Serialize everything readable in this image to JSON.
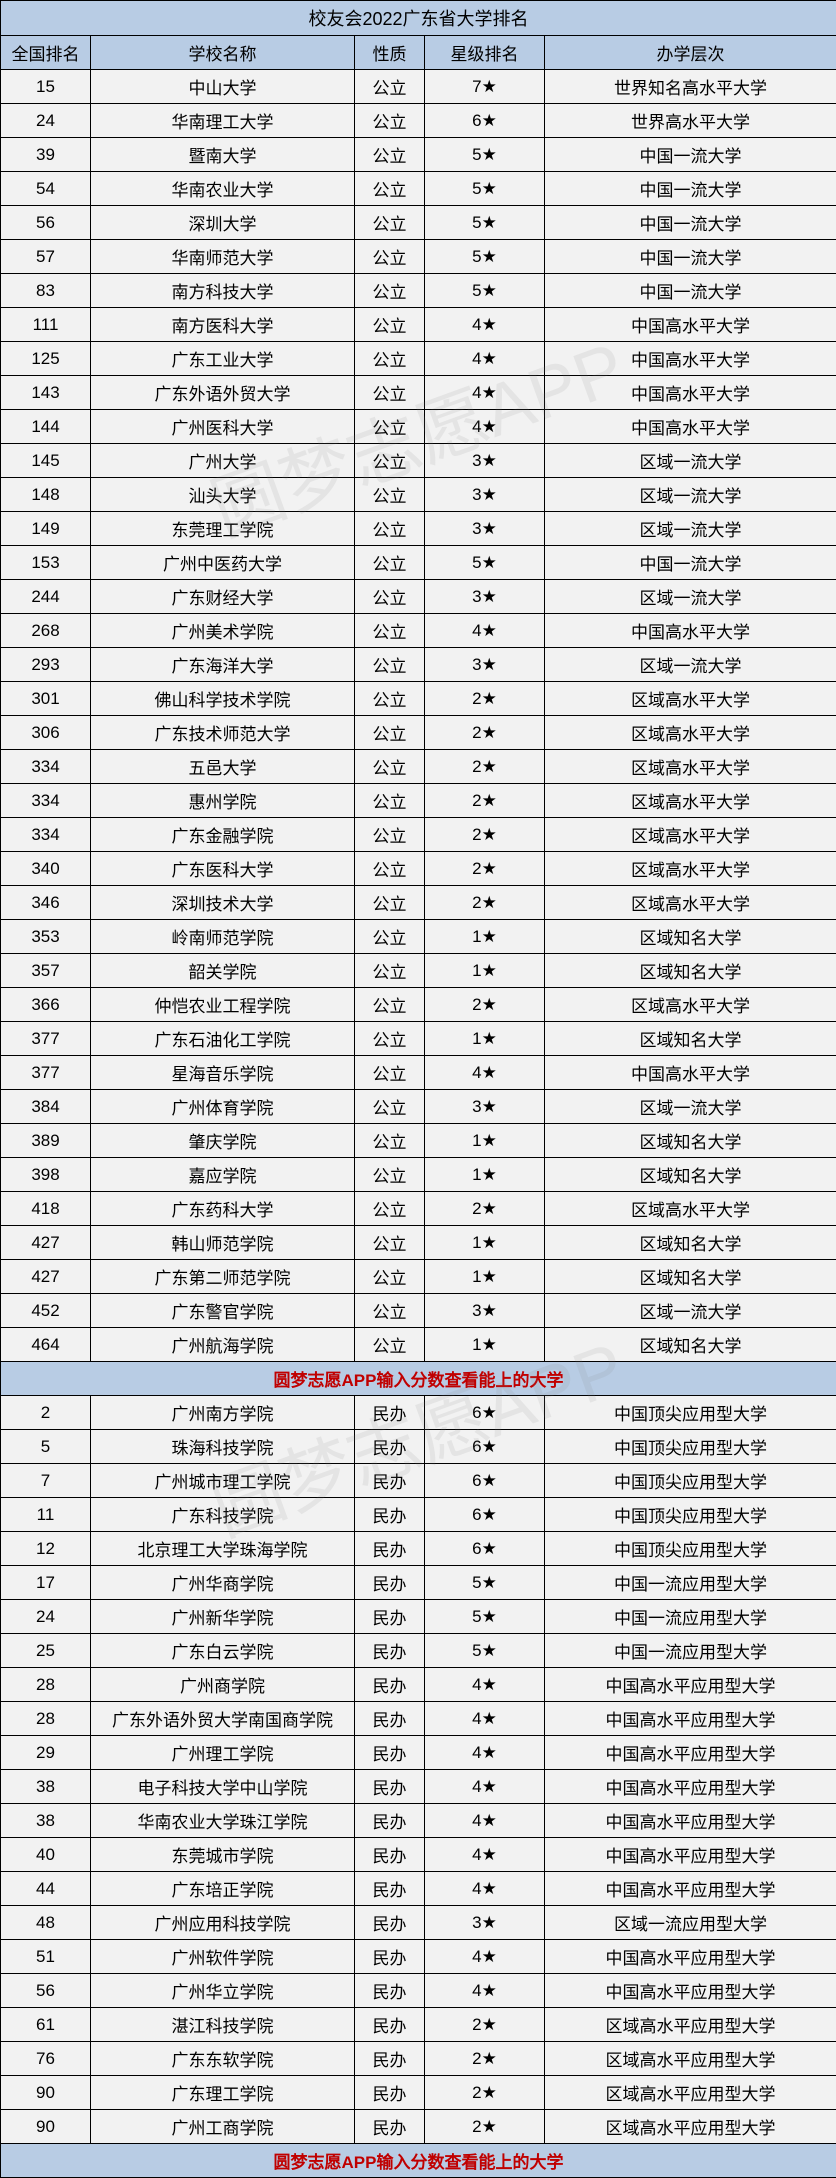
{
  "title": "校友会2022广东省大学排名",
  "columns": [
    "全国排名",
    "学校名称",
    "性质",
    "星级排名",
    "办学层次"
  ],
  "promo_text": "圆梦志愿APP输入分数查看能上的大学",
  "watermark_text": "圆梦志愿APP",
  "colors": {
    "header_bg": "#b8cce4",
    "row_bg": "#f2f2f2",
    "border": "#000000",
    "promo_text": "#c00000",
    "watermark": "rgba(128,128,128,0.12)"
  },
  "section1": [
    {
      "rank": "15",
      "name": "中山大学",
      "type": "公立",
      "star": "7★",
      "level": "世界知名高水平大学"
    },
    {
      "rank": "24",
      "name": "华南理工大学",
      "type": "公立",
      "star": "6★",
      "level": "世界高水平大学"
    },
    {
      "rank": "39",
      "name": "暨南大学",
      "type": "公立",
      "star": "5★",
      "level": "中国一流大学"
    },
    {
      "rank": "54",
      "name": "华南农业大学",
      "type": "公立",
      "star": "5★",
      "level": "中国一流大学"
    },
    {
      "rank": "56",
      "name": "深圳大学",
      "type": "公立",
      "star": "5★",
      "level": "中国一流大学"
    },
    {
      "rank": "57",
      "name": "华南师范大学",
      "type": "公立",
      "star": "5★",
      "level": "中国一流大学"
    },
    {
      "rank": "83",
      "name": "南方科技大学",
      "type": "公立",
      "star": "5★",
      "level": "中国一流大学"
    },
    {
      "rank": "111",
      "name": "南方医科大学",
      "type": "公立",
      "star": "4★",
      "level": "中国高水平大学"
    },
    {
      "rank": "125",
      "name": "广东工业大学",
      "type": "公立",
      "star": "4★",
      "level": "中国高水平大学"
    },
    {
      "rank": "143",
      "name": "广东外语外贸大学",
      "type": "公立",
      "star": "4★",
      "level": "中国高水平大学"
    },
    {
      "rank": "144",
      "name": "广州医科大学",
      "type": "公立",
      "star": "4★",
      "level": "中国高水平大学"
    },
    {
      "rank": "145",
      "name": "广州大学",
      "type": "公立",
      "star": "3★",
      "level": "区域一流大学"
    },
    {
      "rank": "148",
      "name": "汕头大学",
      "type": "公立",
      "star": "3★",
      "level": "区域一流大学"
    },
    {
      "rank": "149",
      "name": "东莞理工学院",
      "type": "公立",
      "star": "3★",
      "level": "区域一流大学"
    },
    {
      "rank": "153",
      "name": "广州中医药大学",
      "type": "公立",
      "star": "5★",
      "level": "中国一流大学"
    },
    {
      "rank": "244",
      "name": "广东财经大学",
      "type": "公立",
      "star": "3★",
      "level": "区域一流大学"
    },
    {
      "rank": "268",
      "name": "广州美术学院",
      "type": "公立",
      "star": "4★",
      "level": "中国高水平大学"
    },
    {
      "rank": "293",
      "name": "广东海洋大学",
      "type": "公立",
      "star": "3★",
      "level": "区域一流大学"
    },
    {
      "rank": "301",
      "name": "佛山科学技术学院",
      "type": "公立",
      "star": "2★",
      "level": "区域高水平大学"
    },
    {
      "rank": "306",
      "name": "广东技术师范大学",
      "type": "公立",
      "star": "2★",
      "level": "区域高水平大学"
    },
    {
      "rank": "334",
      "name": "五邑大学",
      "type": "公立",
      "star": "2★",
      "level": "区域高水平大学"
    },
    {
      "rank": "334",
      "name": "惠州学院",
      "type": "公立",
      "star": "2★",
      "level": "区域高水平大学"
    },
    {
      "rank": "334",
      "name": "广东金融学院",
      "type": "公立",
      "star": "2★",
      "level": "区域高水平大学"
    },
    {
      "rank": "340",
      "name": "广东医科大学",
      "type": "公立",
      "star": "2★",
      "level": "区域高水平大学"
    },
    {
      "rank": "346",
      "name": "深圳技术大学",
      "type": "公立",
      "star": "2★",
      "level": "区域高水平大学"
    },
    {
      "rank": "353",
      "name": "岭南师范学院",
      "type": "公立",
      "star": "1★",
      "level": "区域知名大学"
    },
    {
      "rank": "357",
      "name": "韶关学院",
      "type": "公立",
      "star": "1★",
      "level": "区域知名大学"
    },
    {
      "rank": "366",
      "name": "仲恺农业工程学院",
      "type": "公立",
      "star": "2★",
      "level": "区域高水平大学"
    },
    {
      "rank": "377",
      "name": "广东石油化工学院",
      "type": "公立",
      "star": "1★",
      "level": "区域知名大学"
    },
    {
      "rank": "377",
      "name": "星海音乐学院",
      "type": "公立",
      "star": "4★",
      "level": "中国高水平大学"
    },
    {
      "rank": "384",
      "name": "广州体育学院",
      "type": "公立",
      "star": "3★",
      "level": "区域一流大学"
    },
    {
      "rank": "389",
      "name": "肇庆学院",
      "type": "公立",
      "star": "1★",
      "level": "区域知名大学"
    },
    {
      "rank": "398",
      "name": "嘉应学院",
      "type": "公立",
      "star": "1★",
      "level": "区域知名大学"
    },
    {
      "rank": "418",
      "name": "广东药科大学",
      "type": "公立",
      "star": "2★",
      "level": "区域高水平大学"
    },
    {
      "rank": "427",
      "name": "韩山师范学院",
      "type": "公立",
      "star": "1★",
      "level": "区域知名大学"
    },
    {
      "rank": "427",
      "name": "广东第二师范学院",
      "type": "公立",
      "star": "1★",
      "level": "区域知名大学"
    },
    {
      "rank": "452",
      "name": "广东警官学院",
      "type": "公立",
      "star": "3★",
      "level": "区域一流大学"
    },
    {
      "rank": "464",
      "name": "广州航海学院",
      "type": "公立",
      "star": "1★",
      "level": "区域知名大学"
    }
  ],
  "section2": [
    {
      "rank": "2",
      "name": "广州南方学院",
      "type": "民办",
      "star": "6★",
      "level": "中国顶尖应用型大学"
    },
    {
      "rank": "5",
      "name": "珠海科技学院",
      "type": "民办",
      "star": "6★",
      "level": "中国顶尖应用型大学"
    },
    {
      "rank": "7",
      "name": "广州城市理工学院",
      "type": "民办",
      "star": "6★",
      "level": "中国顶尖应用型大学"
    },
    {
      "rank": "11",
      "name": "广东科技学院",
      "type": "民办",
      "star": "6★",
      "level": "中国顶尖应用型大学"
    },
    {
      "rank": "12",
      "name": "北京理工大学珠海学院",
      "type": "民办",
      "star": "6★",
      "level": "中国顶尖应用型大学"
    },
    {
      "rank": "17",
      "name": "广州华商学院",
      "type": "民办",
      "star": "5★",
      "level": "中国一流应用型大学"
    },
    {
      "rank": "24",
      "name": "广州新华学院",
      "type": "民办",
      "star": "5★",
      "level": "中国一流应用型大学"
    },
    {
      "rank": "25",
      "name": "广东白云学院",
      "type": "民办",
      "star": "5★",
      "level": "中国一流应用型大学"
    },
    {
      "rank": "28",
      "name": "广州商学院",
      "type": "民办",
      "star": "4★",
      "level": "中国高水平应用型大学"
    },
    {
      "rank": "28",
      "name": "广东外语外贸大学南国商学院",
      "type": "民办",
      "star": "4★",
      "level": "中国高水平应用型大学"
    },
    {
      "rank": "29",
      "name": "广州理工学院",
      "type": "民办",
      "star": "4★",
      "level": "中国高水平应用型大学"
    },
    {
      "rank": "38",
      "name": "电子科技大学中山学院",
      "type": "民办",
      "star": "4★",
      "level": "中国高水平应用型大学"
    },
    {
      "rank": "38",
      "name": "华南农业大学珠江学院",
      "type": "民办",
      "star": "4★",
      "level": "中国高水平应用型大学"
    },
    {
      "rank": "40",
      "name": "东莞城市学院",
      "type": "民办",
      "star": "4★",
      "level": "中国高水平应用型大学"
    },
    {
      "rank": "44",
      "name": "广东培正学院",
      "type": "民办",
      "star": "4★",
      "level": "中国高水平应用型大学"
    },
    {
      "rank": "48",
      "name": "广州应用科技学院",
      "type": "民办",
      "star": "3★",
      "level": "区域一流应用型大学"
    },
    {
      "rank": "51",
      "name": "广州软件学院",
      "type": "民办",
      "star": "4★",
      "level": "中国高水平应用型大学"
    },
    {
      "rank": "56",
      "name": "广州华立学院",
      "type": "民办",
      "star": "4★",
      "level": "中国高水平应用型大学"
    },
    {
      "rank": "61",
      "name": "湛江科技学院",
      "type": "民办",
      "star": "2★",
      "level": "区域高水平应用型大学"
    },
    {
      "rank": "76",
      "name": "广东东软学院",
      "type": "民办",
      "star": "2★",
      "level": "区域高水平应用型大学"
    },
    {
      "rank": "90",
      "name": "广东理工学院",
      "type": "民办",
      "star": "2★",
      "level": "区域高水平应用型大学"
    },
    {
      "rank": "90",
      "name": "广州工商学院",
      "type": "民办",
      "star": "2★",
      "level": "区域高水平应用型大学"
    }
  ]
}
